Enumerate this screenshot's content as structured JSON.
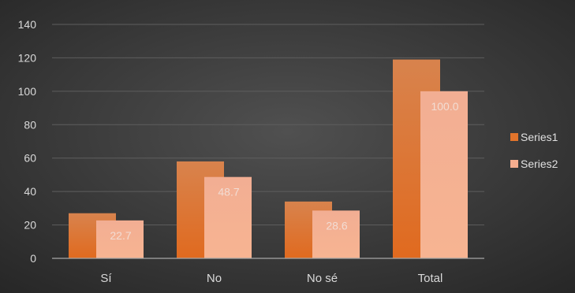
{
  "chart_data": {
    "type": "bar",
    "categories": [
      "Sí",
      "No",
      "No sé",
      "Total"
    ],
    "series": [
      {
        "name": "Series1",
        "values": [
          27,
          58,
          34,
          119
        ],
        "color": "#e2742b"
      },
      {
        "name": "Series2",
        "values": [
          22.7,
          48.7,
          28.6,
          100.0
        ],
        "color": "#f6ae8f",
        "data_labels": [
          "22.7",
          "48.7",
          "28.6",
          "100.0"
        ]
      }
    ],
    "title": "",
    "xlabel": "",
    "ylabel": "",
    "ylim": [
      0,
      140
    ],
    "yticks": [
      0,
      20,
      40,
      60,
      80,
      100,
      120,
      140
    ],
    "ytick_labels": [
      "0",
      "20",
      "40",
      "60",
      "80",
      "100",
      "120",
      "140"
    ],
    "grid": true,
    "legend_position": "right",
    "background": "dark-gradient"
  }
}
